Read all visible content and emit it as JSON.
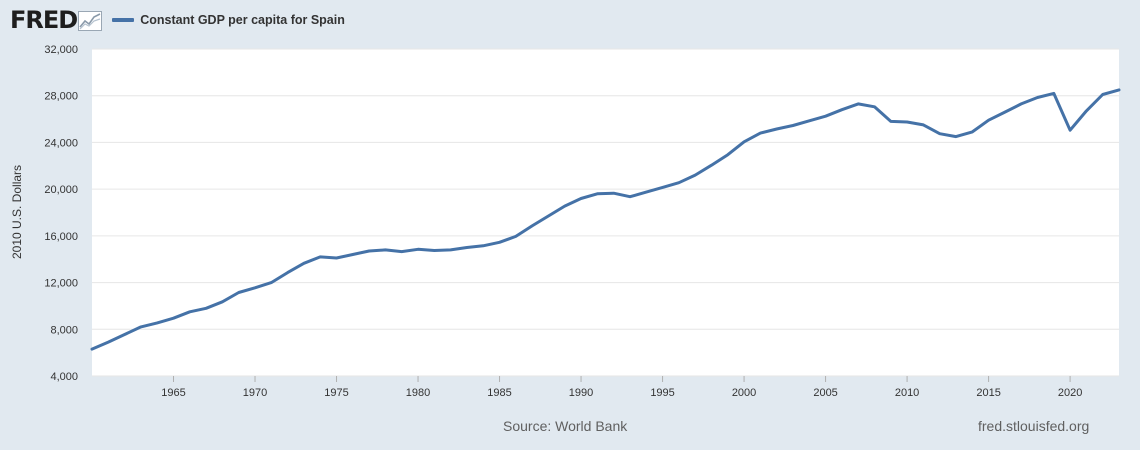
{
  "brand": {
    "logo_text": "FRED",
    "logo_icon": "chart-line-icon"
  },
  "colors": {
    "line": "#4572a7",
    "plot_bg": "#ffffff",
    "page_bg": "#e1e9f0"
  },
  "footer": {
    "source": "Source: World Bank",
    "site": "fred.stlouisfed.org"
  },
  "chart_data": {
    "type": "line",
    "title": "",
    "ylabel": "2010 U.S. Dollars",
    "xlabel": "",
    "xlim": [
      1960,
      2023
    ],
    "ylim": [
      4000,
      32000
    ],
    "x_ticks": [
      1965,
      1970,
      1975,
      1980,
      1985,
      1990,
      1995,
      2000,
      2005,
      2010,
      2015,
      2020
    ],
    "y_ticks": [
      4000,
      8000,
      12000,
      16000,
      20000,
      24000,
      28000,
      32000
    ],
    "x_tick_labels": [
      "1965",
      "1970",
      "1975",
      "1980",
      "1985",
      "1990",
      "1995",
      "2000",
      "2005",
      "2010",
      "2015",
      "2020"
    ],
    "y_tick_labels": [
      "4,000",
      "8,000",
      "12,000",
      "16,000",
      "20,000",
      "24,000",
      "28,000",
      "32,000"
    ],
    "grid": "horizontal",
    "legend_position": "top-left",
    "series": [
      {
        "name": "Constant GDP per capita for Spain",
        "color": "#4572a7",
        "x": [
          1960,
          1961,
          1962,
          1963,
          1964,
          1965,
          1966,
          1967,
          1968,
          1969,
          1970,
          1971,
          1972,
          1973,
          1974,
          1975,
          1976,
          1977,
          1978,
          1979,
          1980,
          1981,
          1982,
          1983,
          1984,
          1985,
          1986,
          1987,
          1988,
          1989,
          1990,
          1991,
          1992,
          1993,
          1994,
          1995,
          1996,
          1997,
          1998,
          1999,
          2000,
          2001,
          2002,
          2003,
          2004,
          2005,
          2006,
          2007,
          2008,
          2009,
          2010,
          2011,
          2012,
          2013,
          2014,
          2015,
          2016,
          2017,
          2018,
          2019,
          2020,
          2021,
          2022,
          2023
        ],
        "y": [
          6300,
          6900,
          7550,
          8200,
          8550,
          8950,
          9500,
          9800,
          10350,
          11150,
          11550,
          12000,
          12850,
          13650,
          14200,
          14100,
          14400,
          14700,
          14800,
          14650,
          14850,
          14750,
          14800,
          15000,
          15150,
          15450,
          15950,
          16850,
          17700,
          18550,
          19200,
          19600,
          19650,
          19350,
          19750,
          20150,
          20550,
          21200,
          22050,
          22950,
          24050,
          24800,
          25150,
          25450,
          25850,
          26250,
          26800,
          27300,
          27050,
          25800,
          25750,
          25500,
          24750,
          24500,
          24900,
          25900,
          26600,
          27300,
          27850,
          28200,
          25050,
          26700,
          28100,
          28500
        ]
      }
    ]
  }
}
